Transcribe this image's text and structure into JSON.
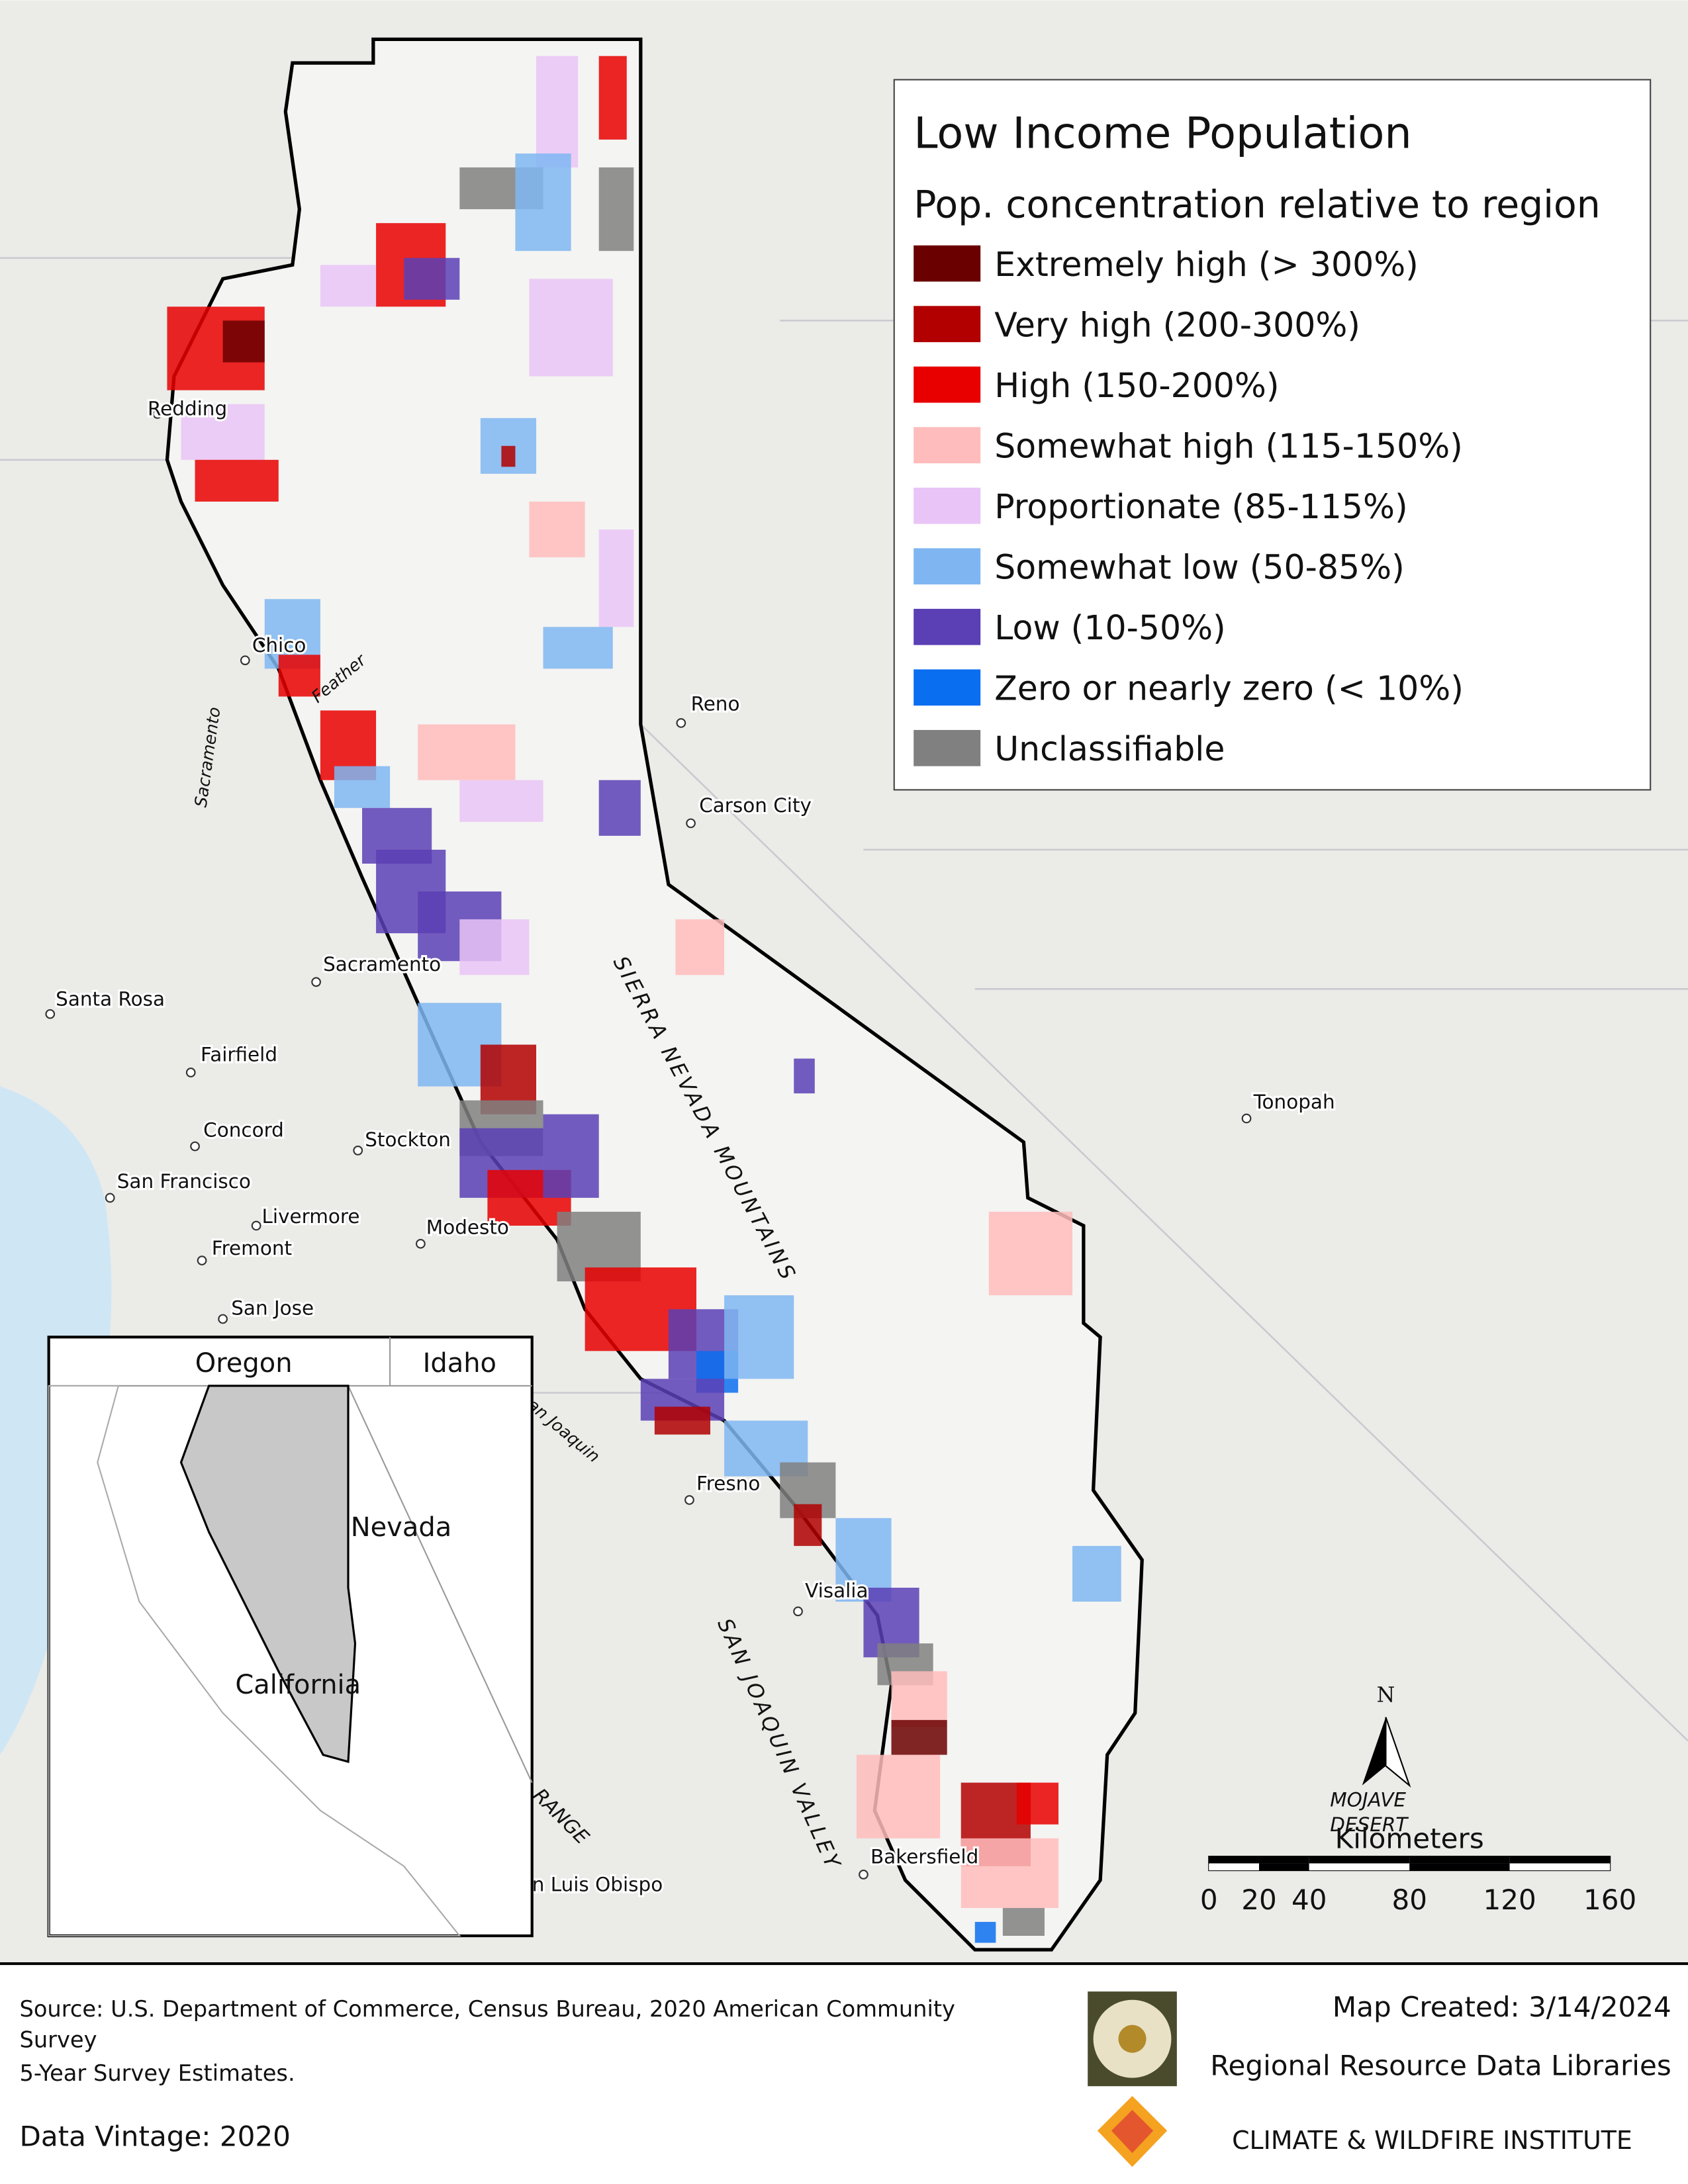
{
  "legend": {
    "title": "Low Income  Population",
    "subtitle": "Pop. concentration relative to region",
    "items": [
      {
        "label": "Extremely high (> 300%)",
        "color": "#6b0000"
      },
      {
        "label": "Very high (200-300%)",
        "color": "#b20000"
      },
      {
        "label": "High (150-200%)",
        "color": "#e80000"
      },
      {
        "label": "Somewhat high (115-150%)",
        "color": "#ffbcbc"
      },
      {
        "label": "Proportionate (85-115%)",
        "color": "#e9c4f7"
      },
      {
        "label": "Somewhat low (50-85%)",
        "color": "#7fb6f2"
      },
      {
        "label": "Low (10-50%)",
        "color": "#5a3fb5"
      },
      {
        "label": "Zero or nearly zero (< 10%)",
        "color": "#0a6ef0"
      },
      {
        "label": "Unclassifiable",
        "color": "#808080"
      }
    ]
  },
  "places": [
    "Redding",
    "Chico",
    "Reno",
    "Carson City",
    "Sacramento",
    "Santa Rosa",
    "Fairfield",
    "Concord",
    "Stockton",
    "San Francisco",
    "Livermore",
    "Modesto",
    "Fremont",
    "San Jose",
    "Fresno",
    "Visalia",
    "Bakersfield",
    "Tonopah",
    "n Luis Obispo"
  ],
  "features": [
    "SIERRA NEVADA MOUNTAINS",
    "SAN JOAQUIN VALLEY",
    "Sacramento",
    "Feather",
    "an Joaquin",
    "MOJAVE",
    "DESERT",
    "RANGE"
  ],
  "inset": [
    "Oregon",
    "Idaho",
    "Nevada",
    "California"
  ],
  "north": "N",
  "scale_bar": {
    "unit": "Kilometers",
    "ticks": [
      0,
      20,
      40,
      80,
      120,
      160
    ]
  },
  "footer": {
    "source": [
      "Source:  U.S. Department of Commerce, Census Bureau, 2020 American Community",
      "Survey",
      "5-Year Survey Estimates."
    ],
    "data_vintage": "Data Vintage:  2020",
    "map_created": "Map Created: 3/14/2024",
    "org1": "Regional Resource Data Libraries",
    "org2": "CLIMATE & WILDFIRE INSTITUTE"
  }
}
